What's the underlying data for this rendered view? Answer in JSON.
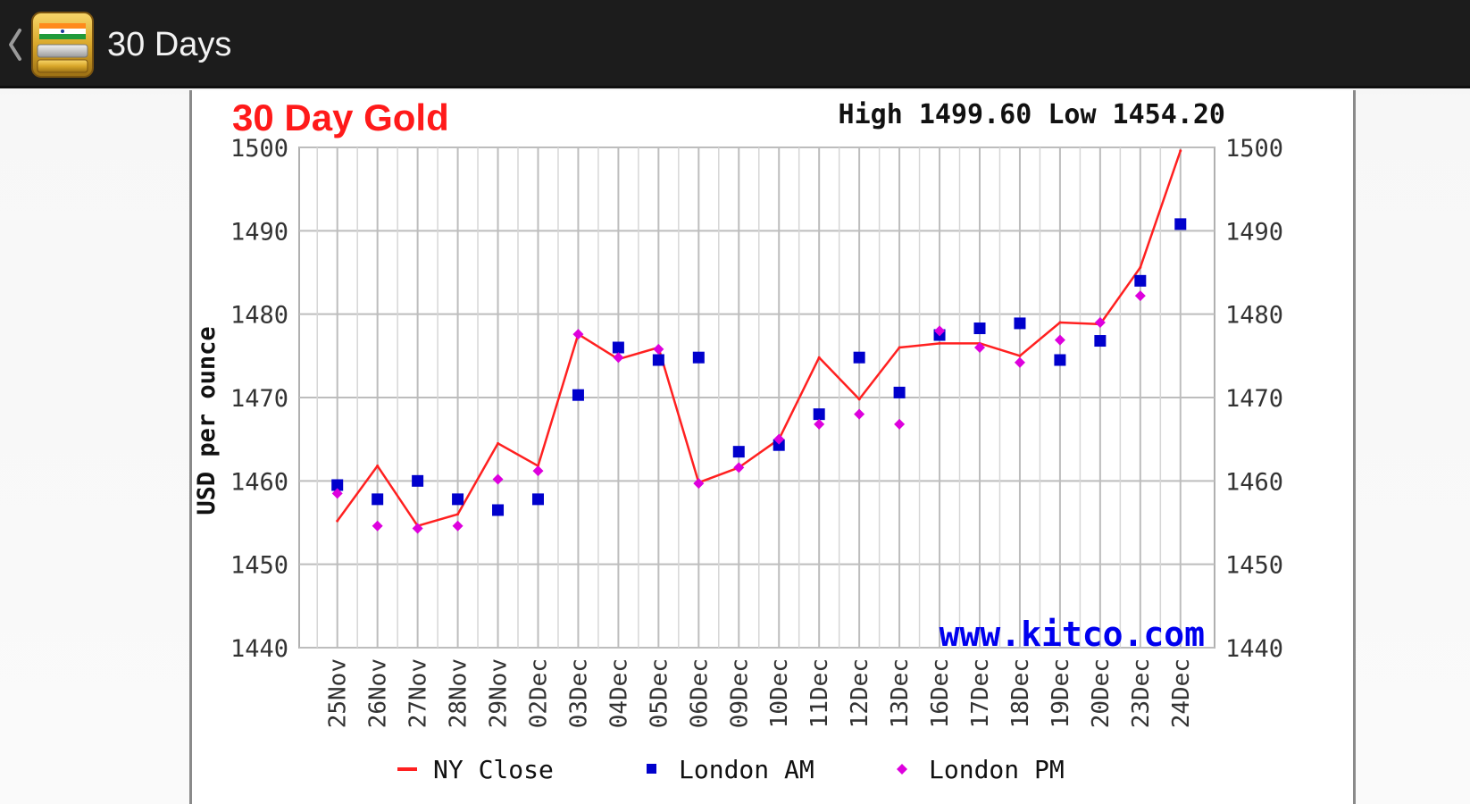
{
  "action_bar": {
    "title": "30 Days",
    "icon": "india-gold-bars-app-icon",
    "up_icon": "chevron-left-icon"
  },
  "chart_data": {
    "type": "line",
    "title": "30 Day Gold",
    "high_low": "High 1499.60 Low 1454.20",
    "ylabel": "USD per ounce",
    "xlabel": "",
    "watermark": "www.kitco.com",
    "ylim": [
      1440,
      1500
    ],
    "yticks": [
      "1440",
      "1450",
      "1460",
      "1470",
      "1480",
      "1490",
      "1500"
    ],
    "grid": true,
    "legend_position": "bottom",
    "categories": [
      "25Nov",
      "26Nov",
      "27Nov",
      "28Nov",
      "29Nov",
      "02Dec",
      "03Dec",
      "04Dec",
      "05Dec",
      "06Dec",
      "09Dec",
      "10Dec",
      "11Dec",
      "12Dec",
      "13Dec",
      "16Dec",
      "17Dec",
      "18Dec",
      "19Dec",
      "20Dec",
      "23Dec",
      "24Dec"
    ],
    "series": [
      {
        "name": "NY Close",
        "marker": "line",
        "color": "#ff2020",
        "values": [
          1455.2,
          1461.8,
          1454.6,
          1456.0,
          1464.5,
          1461.8,
          1477.6,
          1474.6,
          1476.0,
          1459.8,
          1461.6,
          1465.0,
          1474.8,
          1469.8,
          1476.0,
          1476.5,
          1476.5,
          1475.0,
          1479.0,
          1478.8,
          1485.6,
          1499.6
        ]
      },
      {
        "name": "London AM",
        "marker": "square",
        "color": "#0000cc",
        "values": [
          1459.5,
          1457.8,
          1460.0,
          1457.8,
          1456.5,
          1457.8,
          1470.3,
          1476.0,
          1474.5,
          1474.8,
          1463.5,
          1464.3,
          1468.0,
          1474.8,
          1470.6,
          1477.5,
          1478.3,
          1478.9,
          1474.5,
          1476.8,
          1484.0,
          1490.8
        ]
      },
      {
        "name": "London PM",
        "marker": "diamond",
        "color": "#dd00dd",
        "values": [
          1458.5,
          1454.6,
          1454.3,
          1454.6,
          1460.2,
          1461.2,
          1477.6,
          1474.8,
          1475.8,
          1459.7,
          1461.6,
          1465.0,
          1466.8,
          1468.0,
          1466.8,
          1478.0,
          1476.0,
          1474.2,
          1476.9,
          1479.0,
          1482.2,
          null
        ]
      }
    ]
  }
}
